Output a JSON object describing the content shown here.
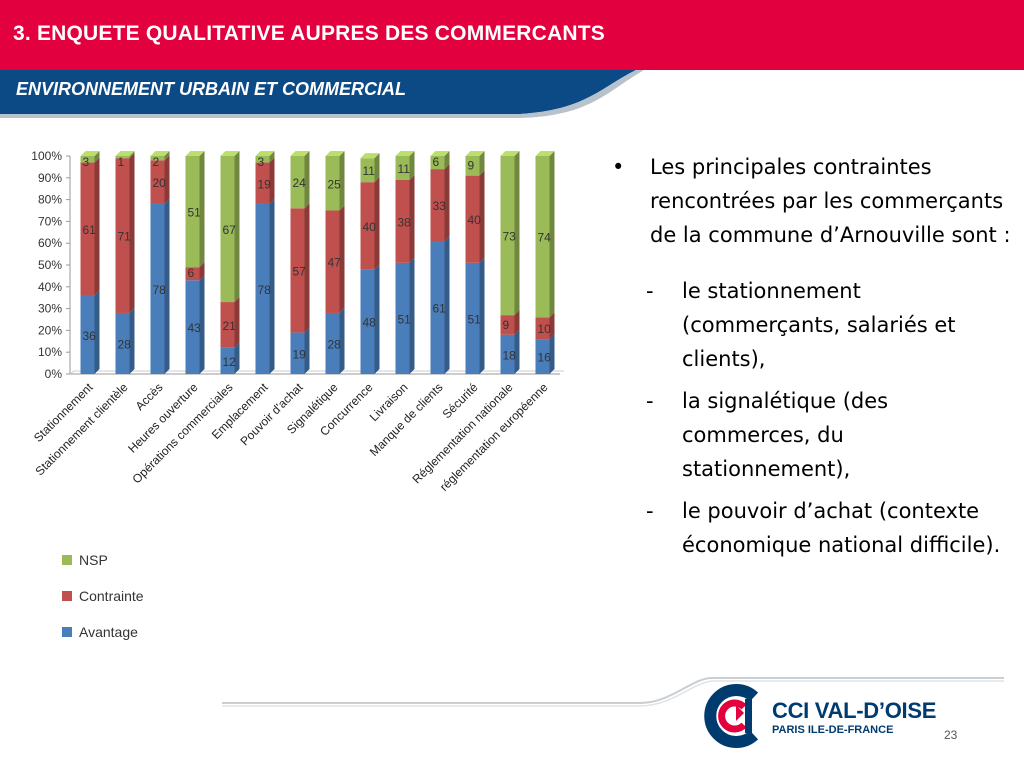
{
  "slide": {
    "title": "3. ENQUETE QUALITATIVE AUPRES DES COMMERCANTS",
    "subtitle": "ENVIRONNEMENT URBAIN ET COMMERCIAL",
    "page_number": "23"
  },
  "colors": {
    "header_red": "#e3003f",
    "subheader_blue": "#0c4a86",
    "avantage": "#4a7ebb",
    "contrainte": "#c0504d",
    "nsp": "#9bbb59",
    "logo_navy": "#003b6f"
  },
  "bullets": {
    "main": "Les principales contraintes rencontrées par les commerçants de la commune d’Arnouville sont :",
    "dash_marker": "-",
    "bullet_marker": "•",
    "items": [
      "le stationnement (commerçants, salariés et clients),",
      "la signalétique (des commerces, du stationnement),",
      "le pouvoir d’achat (contexte économique national difficile)."
    ]
  },
  "logo": {
    "name": "CCI VAL-D’OISE",
    "sub": "PARIS ILE-DE-FRANCE",
    "icon": "cci-logo-icon"
  },
  "chart_data": {
    "type": "bar",
    "stacked": true,
    "percent": true,
    "categories": [
      "Stationnement",
      "Stationnement clientèle",
      "Accès",
      "Heures ouverture",
      "Opérations commerciales",
      "Emplacement",
      "Pouvoir d'achat",
      "Signalétique",
      "Concurrence",
      "Livraison",
      "Manque de clients",
      "Sécurité",
      "Réglementation nationale",
      "réglementation européenne"
    ],
    "series": [
      {
        "name": "Avantage",
        "values": [
          36,
          28,
          78,
          43,
          12,
          78,
          19,
          28,
          48,
          51,
          61,
          51,
          18,
          16
        ]
      },
      {
        "name": "Contrainte",
        "values": [
          61,
          71,
          20,
          6,
          21,
          19,
          57,
          47,
          40,
          38,
          33,
          40,
          9,
          10
        ]
      },
      {
        "name": "NSP",
        "values": [
          3,
          1,
          2,
          51,
          67,
          3,
          24,
          25,
          11,
          11,
          6,
          9,
          73,
          74
        ]
      }
    ],
    "ytick_labels": [
      "0%",
      "10%",
      "20%",
      "30%",
      "40%",
      "50%",
      "60%",
      "70%",
      "80%",
      "90%",
      "100%"
    ],
    "ylim": [
      0,
      100
    ],
    "grid": false,
    "legend_position": "bottom-left"
  }
}
